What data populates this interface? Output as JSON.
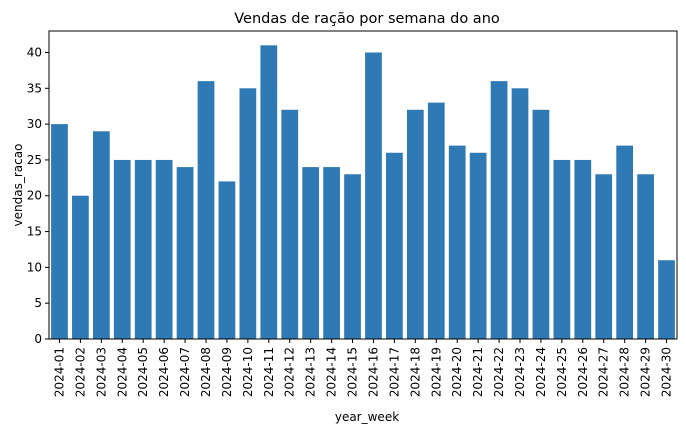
{
  "chart_data": {
    "type": "bar",
    "title": "Vendas de ração por semana do ano",
    "xlabel": "year_week",
    "ylabel": "vendas_racao",
    "ylim": [
      0,
      43
    ],
    "yticks": [
      0,
      5,
      10,
      15,
      20,
      25,
      30,
      35,
      40
    ],
    "grid": false,
    "bar_color": "#2f7ab4",
    "categories": [
      "2024-01",
      "2024-02",
      "2024-03",
      "2024-04",
      "2024-05",
      "2024-06",
      "2024-07",
      "2024-08",
      "2024-09",
      "2024-10",
      "2024-11",
      "2024-12",
      "2024-13",
      "2024-14",
      "2024-15",
      "2024-16",
      "2024-17",
      "2024-18",
      "2024-19",
      "2024-20",
      "2024-21",
      "2024-22",
      "2024-23",
      "2024-24",
      "2024-25",
      "2024-26",
      "2024-27",
      "2024-28",
      "2024-29",
      "2024-30"
    ],
    "values": [
      30,
      20,
      29,
      25,
      25,
      25,
      24,
      36,
      22,
      35,
      41,
      32,
      24,
      24,
      23,
      40,
      26,
      32,
      33,
      27,
      26,
      36,
      35,
      32,
      25,
      25,
      23,
      27,
      23,
      11
    ]
  }
}
